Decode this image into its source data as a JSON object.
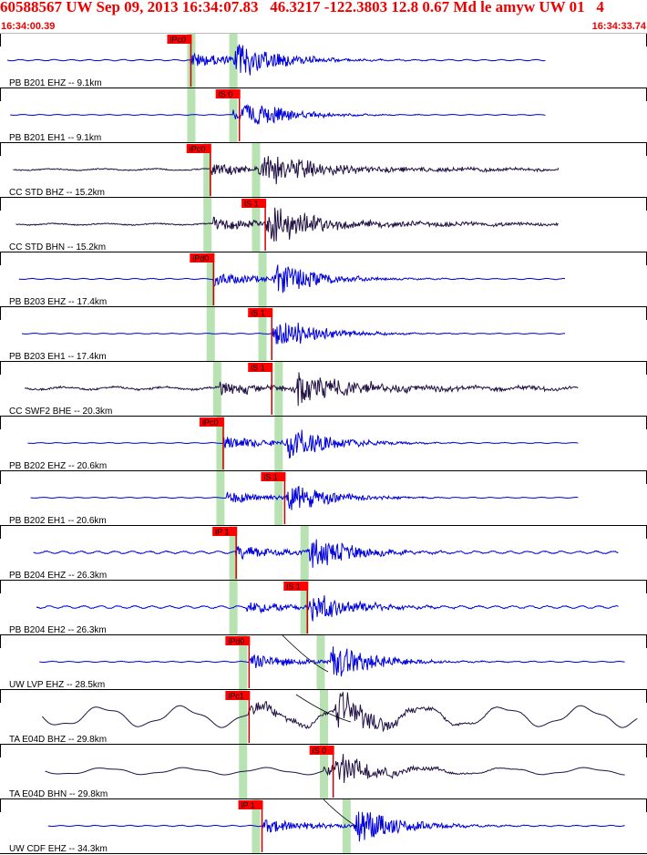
{
  "header": {
    "title": "60588567 UW Sep 09, 2013 16:34:07.83   46.3217 -122.3803 12.8 0.67 Md le amyw UW 01   4",
    "start_time": "16:34:00.39",
    "end_time": "16:34:33.74"
  },
  "colors": {
    "header_text": "#ee0000",
    "pick_box": "#ff0000",
    "pick_line": "#cc0000",
    "window_band": "#b8e2b2",
    "trace_blue": "#0000dd",
    "trace_dark": "#221144",
    "divider": "#000000"
  },
  "traces": [
    {
      "label": "PB B201 EHZ -- 9.1km",
      "pick": "iPc0",
      "color": "blue",
      "wave": "bp",
      "amp": 1.0,
      "noise": 0.3,
      "p": 0.295,
      "s": 0.36,
      "pk": 0.295,
      "b1": 0.295,
      "b2": 0.36,
      "tail": 0.9
    },
    {
      "label": "PB B201 EH1 -- 9.1km",
      "pick": "iS 0",
      "color": "blue",
      "wave": "bp",
      "amp": 0.7,
      "noise": 0.2,
      "p": 0.36,
      "s": 0.37,
      "pk": 0.37,
      "b1": 0.295,
      "b2": 0.36,
      "tail": 0.9
    },
    {
      "label": "CC STD BHZ -- 15.2km",
      "pick": "iPc0",
      "color": "dark",
      "wave": "bb",
      "amp": 0.9,
      "noise": 0.5,
      "p": 0.325,
      "s": 0.4,
      "pk": 0.325,
      "b1": 0.32,
      "b2": 0.395,
      "tail": 0.92
    },
    {
      "label": "CC STD BHN -- 15.2km",
      "pick": "iS 1",
      "color": "dark",
      "wave": "bb",
      "amp": 0.9,
      "noise": 0.5,
      "p": 0.33,
      "s": 0.41,
      "pk": 0.41,
      "b1": 0.32,
      "b2": 0.395,
      "tail": 0.92
    },
    {
      "label": "PB B203 EHZ -- 17.4km",
      "pick": "iPd0",
      "color": "blue",
      "wave": "bp",
      "amp": 0.9,
      "noise": 0.25,
      "p": 0.33,
      "s": 0.42,
      "pk": 0.33,
      "b1": 0.325,
      "b2": 0.405,
      "tail": 0.93
    },
    {
      "label": "PB B203 EH1 -- 17.4km",
      "pick": "iS 1",
      "color": "blue",
      "wave": "bp",
      "amp": 0.8,
      "noise": 0.2,
      "p": 0.42,
      "s": 0.42,
      "pk": 0.42,
      "b1": 0.325,
      "b2": 0.405,
      "tail": 0.93
    },
    {
      "label": "CC SWF2 BHE -- 20.3km",
      "pick": "iS 1",
      "color": "dark",
      "wave": "bb",
      "amp": 1.0,
      "noise": 0.9,
      "p": 0.34,
      "s": 0.455,
      "pk": 0.42,
      "b1": 0.335,
      "b2": 0.43,
      "tail": 0.95
    },
    {
      "label": "PB B202 EHZ -- 20.6km",
      "pick": "iPc0",
      "color": "blue",
      "wave": "bp",
      "amp": 0.9,
      "noise": 0.2,
      "p": 0.345,
      "s": 0.44,
      "pk": 0.345,
      "b1": 0.34,
      "b2": 0.43,
      "tail": 0.95
    },
    {
      "label": "PB B202 EH1 -- 20.6km",
      "pick": "iS 1",
      "color": "blue",
      "wave": "bp",
      "amp": 0.8,
      "noise": 0.2,
      "p": 0.35,
      "s": 0.44,
      "pk": 0.44,
      "b1": 0.34,
      "b2": 0.43,
      "tail": 0.95
    },
    {
      "label": "PB B204 EHZ -- 26.3km",
      "pick": "iP 1",
      "color": "blue",
      "wave": "bp",
      "amp": 0.9,
      "noise": 0.6,
      "p": 0.365,
      "s": 0.475,
      "pk": 0.365,
      "b1": 0.36,
      "b2": 0.47,
      "tail": 0.97
    },
    {
      "label": "PB B204 EH2 -- 26.3km",
      "pick": "iS 1",
      "color": "blue",
      "wave": "bp",
      "amp": 0.8,
      "noise": 0.6,
      "p": 0.38,
      "s": 0.475,
      "pk": 0.475,
      "b1": 0.36,
      "b2": 0.47,
      "tail": 0.97
    },
    {
      "label": "UW LVP EHZ -- 28.5km",
      "pick": "iPd0",
      "color": "blue",
      "wave": "bp",
      "amp": 1.0,
      "noise": 0.25,
      "p": 0.385,
      "s": 0.505,
      "pk": 0.385,
      "b1": 0.375,
      "b2": 0.495,
      "tail": 0.98
    },
    {
      "label": "TA E04D BHZ -- 29.8km",
      "pick": "iPc1",
      "color": "dark",
      "wave": "lp",
      "amp": 1.0,
      "noise": 0.9,
      "p": 0.385,
      "s": 0.515,
      "pk": 0.385,
      "b1": 0.375,
      "b2": 0.5,
      "tail": 1.0
    },
    {
      "label": "TA E04D BHN -- 29.8km",
      "pick": "iS 0",
      "color": "dark",
      "wave": "lp",
      "amp": 0.8,
      "noise": 0.3,
      "p": 0.5,
      "s": 0.515,
      "pk": 0.515,
      "b1": 0.375,
      "b2": 0.5,
      "tail": 0.98
    },
    {
      "label": "UW CDF EHZ -- 34.3km",
      "pick": "iP 1",
      "color": "blue",
      "wave": "bp",
      "amp": 1.0,
      "noise": 0.25,
      "p": 0.405,
      "s": 0.545,
      "pk": 0.405,
      "b1": 0.395,
      "b2": 0.535,
      "tail": 0.98
    }
  ]
}
